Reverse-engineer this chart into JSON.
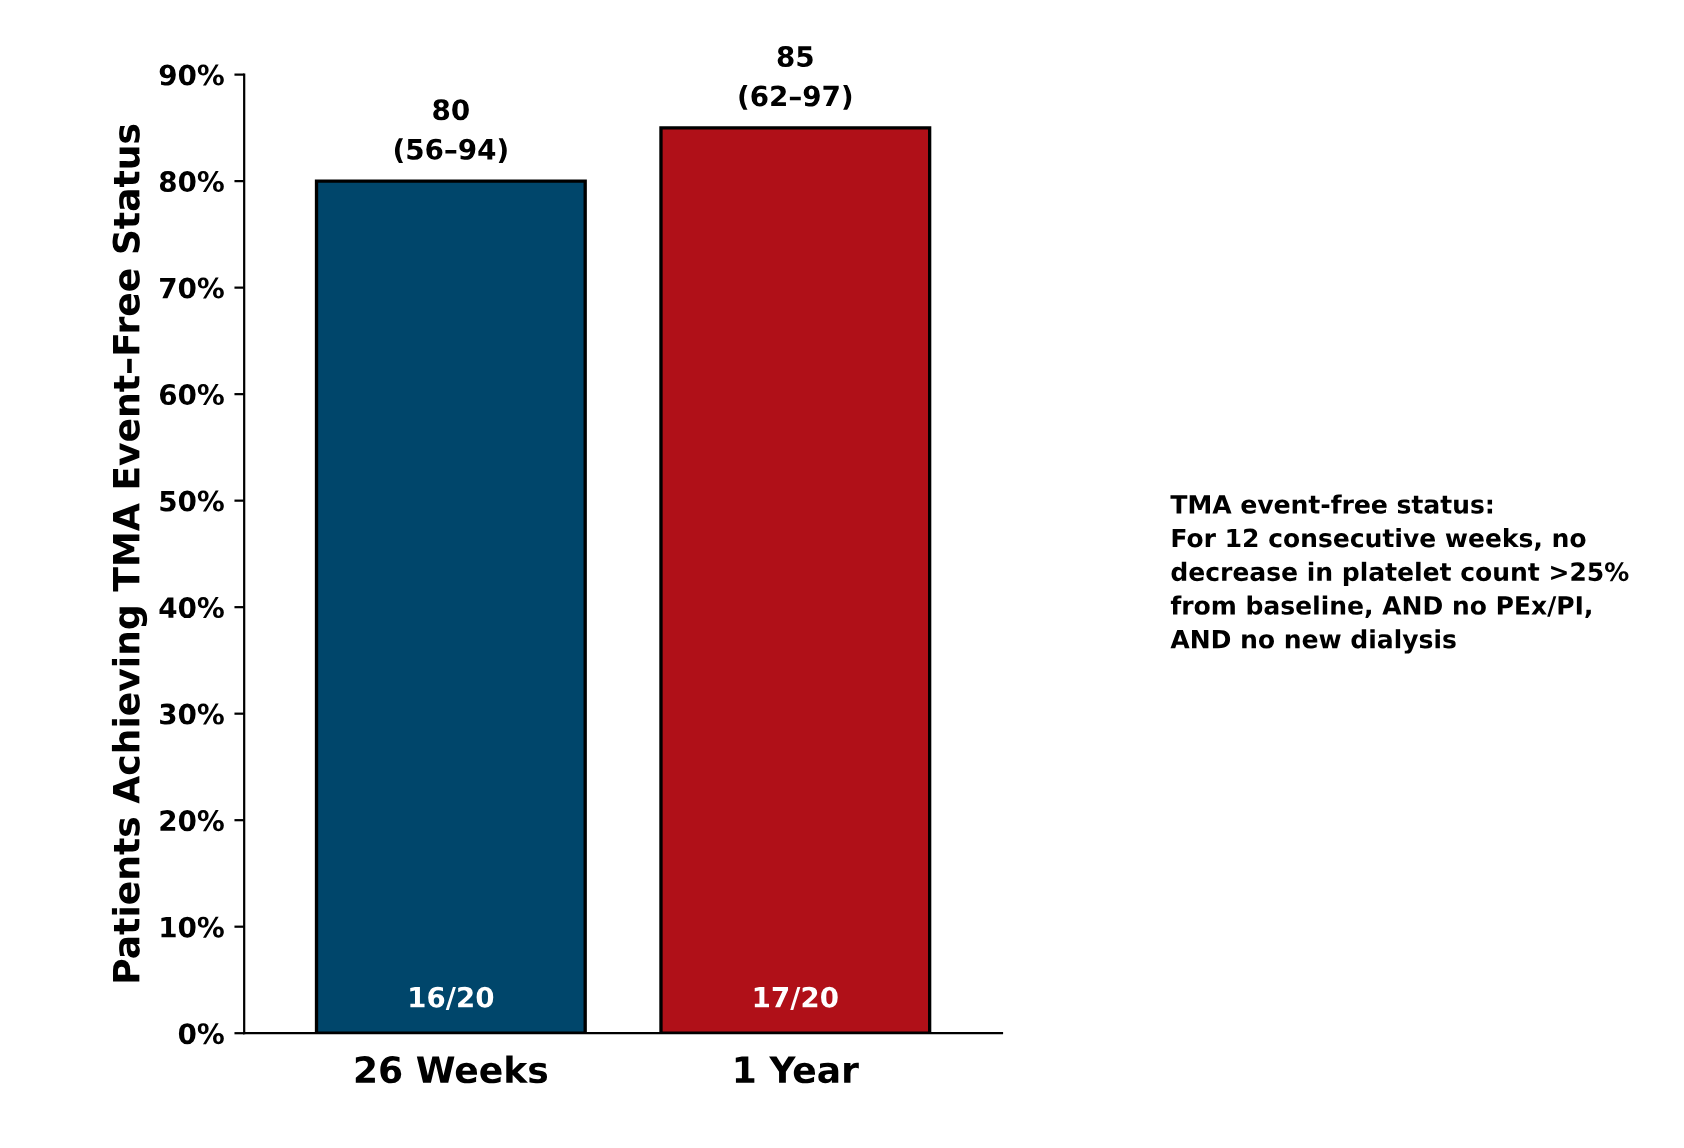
{
  "chart_data": {
    "type": "bar",
    "ylabel": "Patients Achieving TMA Event–Free Status",
    "categories": [
      "26 Weeks",
      "1 Year"
    ],
    "values": [
      80,
      85
    ],
    "colors": [
      "#00466b",
      "#b01018"
    ],
    "value_labels": [
      "80\n(56–94)",
      "85\n(62–97)"
    ],
    "ylim": [
      0,
      90
    ],
    "yticks": [
      {
        "value": 0,
        "label": "0%"
      },
      {
        "value": 10,
        "label": "10%"
      },
      {
        "value": 20,
        "label": "20%"
      },
      {
        "value": 30,
        "label": "30%"
      },
      {
        "value": 40,
        "label": "40%"
      },
      {
        "value": 50,
        "label": "50%"
      },
      {
        "value": 60,
        "label": "60%"
      },
      {
        "value": 70,
        "label": "70%"
      },
      {
        "value": 80,
        "label": "80%"
      },
      {
        "value": 90,
        "label": "90%"
      }
    ],
    "grid": false,
    "legend": false,
    "annotations": [
      "16/20",
      "17/20",
      "TMA event-free status:\nFor 12 consecutive weeks, no\ndecrease in platelet count >25%\nfrom baseline, AND no PEx/PI,\nAND no new dialysis"
    ]
  }
}
